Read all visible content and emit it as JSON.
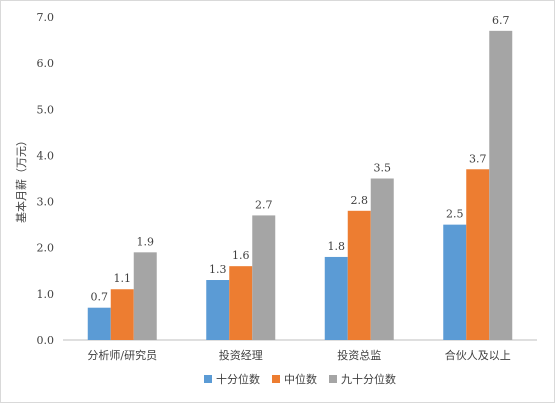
{
  "chart_data": {
    "type": "bar",
    "ylabel": "基本月薪（万元）",
    "ylim": [
      0,
      7
    ],
    "yticks": [
      "0.0",
      "1.0",
      "2.0",
      "3.0",
      "4.0",
      "5.0",
      "6.0",
      "7.0"
    ],
    "categories": [
      "分析师/研究员",
      "投资经理",
      "投资总监",
      "合伙人及以上"
    ],
    "series": [
      {
        "name": "十分位数",
        "color": "#5b9bd5",
        "values": [
          0.7,
          1.3,
          1.8,
          2.5
        ],
        "labels": [
          "0.7",
          "1.3",
          "1.8",
          "2.5"
        ]
      },
      {
        "name": "中位数",
        "color": "#ed7d31",
        "values": [
          1.1,
          1.6,
          2.8,
          3.7
        ],
        "labels": [
          "1.1",
          "1.6",
          "2.8",
          "3.7"
        ]
      },
      {
        "name": "九十分位数",
        "color": "#a5a5a5",
        "values": [
          1.9,
          2.7,
          3.5,
          6.7
        ],
        "labels": [
          "1.9",
          "2.7",
          "3.5",
          "6.7"
        ]
      }
    ],
    "gridlines": false,
    "legend": "bottom"
  }
}
